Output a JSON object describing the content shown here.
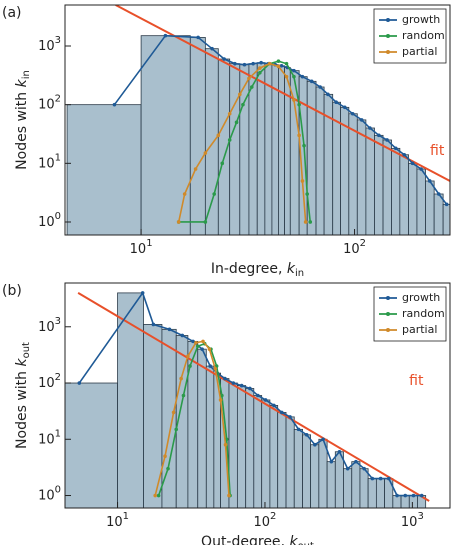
{
  "chart_data": [
    {
      "type": "histogram",
      "panel_label": "(a)",
      "xlabel": {
        "text": "In-degree, ",
        "var": "k",
        "sub": "in"
      },
      "ylabel": {
        "text": "Nodes with ",
        "var": "k",
        "sub": "in"
      },
      "xscale": "log",
      "yscale": "log",
      "xlim": [
        4.4,
        280
      ],
      "ylim": [
        0.6,
        5000
      ],
      "xticks": [
        {
          "value": 10,
          "label": "10^1"
        },
        {
          "value": 100,
          "label": "10^2"
        }
      ],
      "yticks": [
        {
          "value": 1,
          "label": "10^0"
        },
        {
          "value": 10,
          "label": "10^1"
        },
        {
          "value": 100,
          "label": "10^2"
        },
        {
          "value": 1000,
          "label": "10^3"
        }
      ],
      "bins": [
        4.5,
        10,
        17,
        20,
        23,
        26,
        29,
        32,
        35,
        38,
        41,
        44,
        47,
        50,
        55,
        60,
        66,
        72,
        79,
        86,
        94,
        103,
        113,
        124,
        136,
        149,
        163,
        179,
        196,
        215,
        236,
        260,
        280
      ],
      "counts": [
        100,
        1500,
        1400,
        900,
        600,
        500,
        480,
        500,
        520,
        500,
        480,
        460,
        430,
        380,
        300,
        250,
        200,
        150,
        110,
        90,
        70,
        55,
        40,
        30,
        25,
        18,
        14,
        10,
        8,
        5,
        3,
        2
      ],
      "bar_color": "#a9bfcd",
      "legend": "upper right",
      "series": [
        {
          "name": "growth",
          "color": "#1f5a96",
          "x": [
            7.5,
            13,
            18.5,
            21.5,
            24.5,
            27.5,
            30.5,
            33.5,
            36.5,
            39.5,
            42.5,
            45.5,
            48.5,
            52,
            57,
            63,
            69,
            75,
            82,
            90,
            98,
            108,
            118,
            130,
            142,
            156,
            171,
            187,
            205,
            225,
            248,
            270
          ],
          "values": [
            100,
            1500,
            1400,
            900,
            600,
            500,
            480,
            500,
            520,
            500,
            480,
            460,
            430,
            380,
            300,
            250,
            200,
            150,
            110,
            90,
            70,
            55,
            40,
            30,
            25,
            18,
            14,
            10,
            8,
            5,
            3,
            2
          ]
        },
        {
          "name": "random",
          "color": "#2a9a4a",
          "x": [
            15,
            20,
            22,
            24,
            26,
            28,
            30,
            33,
            36,
            40,
            44,
            48,
            52,
            55,
            58,
            60,
            62
          ],
          "values": [
            1,
            1,
            3,
            10,
            25,
            50,
            100,
            200,
            350,
            500,
            550,
            500,
            300,
            100,
            20,
            3,
            1
          ]
        },
        {
          "name": "partial",
          "color": "#d08a2a",
          "x": [
            15,
            16,
            18,
            20,
            23,
            26,
            29,
            32,
            36,
            40,
            44,
            48,
            52,
            55,
            57,
            59
          ],
          "values": [
            1,
            3,
            8,
            15,
            30,
            70,
            150,
            280,
            420,
            500,
            450,
            300,
            120,
            30,
            5,
            1
          ]
        }
      ],
      "fit": {
        "name": "fit",
        "color": "#e8502a",
        "x": [
          7.6,
          280
        ],
        "values": [
          5000,
          5
        ]
      }
    },
    {
      "type": "histogram",
      "panel_label": "(b)",
      "xlabel": {
        "text": "Out-degree, ",
        "var": "k",
        "sub": "out"
      },
      "ylabel": {
        "text": "Nodes with ",
        "var": "k",
        "sub": "out"
      },
      "xscale": "log",
      "yscale": "log",
      "xlim": [
        4.4,
        1800
      ],
      "ylim": [
        0.6,
        6000
      ],
      "xticks": [
        {
          "value": 10,
          "label": "10^1"
        },
        {
          "value": 100,
          "label": "10^2"
        },
        {
          "value": 1000,
          "label": "10^3"
        }
      ],
      "yticks": [
        {
          "value": 1,
          "label": "10^0"
        },
        {
          "value": 10,
          "label": "10^1"
        },
        {
          "value": 100,
          "label": "10^2"
        },
        {
          "value": 1000,
          "label": "10^3"
        }
      ],
      "bins": [
        4.4,
        10,
        15,
        20,
        25,
        30,
        35,
        40,
        45,
        50,
        57,
        65,
        74,
        84,
        95,
        108,
        122,
        139,
        158,
        180,
        204,
        232,
        264,
        300,
        341,
        388,
        441,
        501,
        570,
        648,
        737,
        838,
        953,
        1083,
        1231
      ],
      "counts": [
        100,
        4000,
        1100,
        900,
        700,
        550,
        400,
        200,
        150,
        120,
        100,
        90,
        80,
        60,
        50,
        40,
        30,
        25,
        15,
        12,
        8,
        10,
        4,
        6,
        3,
        4,
        3,
        2,
        2,
        2,
        1,
        1,
        1,
        1
      ],
      "bar_color": "#a9bfcd",
      "legend": "upper right",
      "series": [
        {
          "name": "growth",
          "color": "#1f5a96",
          "x": [
            5.5,
            14.8,
            17.5,
            22.5,
            27.5,
            32.5,
            37.5,
            42.5,
            47.5,
            53.5,
            61,
            69.5,
            79,
            89.5,
            101,
            115,
            130,
            148,
            169,
            192,
            218,
            248,
            282,
            320,
            364,
            414,
            471,
            535,
            609,
            692,
            787,
            895,
            1018,
            1157
          ],
          "values": [
            100,
            4000,
            1100,
            900,
            700,
            550,
            400,
            200,
            150,
            120,
            100,
            90,
            80,
            60,
            50,
            40,
            30,
            25,
            15,
            12,
            8,
            10,
            4,
            6,
            3,
            4,
            3,
            2,
            2,
            2,
            1,
            1,
            1,
            1
          ]
        },
        {
          "name": "random",
          "color": "#2a9a4a",
          "x": [
            19,
            22,
            25,
            28,
            31,
            35,
            39,
            43,
            47,
            51,
            55,
            58
          ],
          "values": [
            1,
            3,
            15,
            60,
            200,
            450,
            500,
            400,
            200,
            60,
            10,
            1
          ]
        },
        {
          "name": "partial",
          "color": "#d08a2a",
          "x": [
            18,
            21,
            24,
            27,
            30,
            34,
            38,
            42,
            46,
            50,
            54,
            57
          ],
          "values": [
            1,
            5,
            30,
            120,
            300,
            520,
            550,
            400,
            180,
            50,
            8,
            1
          ]
        }
      ],
      "fit": {
        "name": "fit",
        "color": "#e8502a",
        "x": [
          5.4,
          1300
        ],
        "values": [
          4000,
          0.8
        ]
      }
    }
  ]
}
